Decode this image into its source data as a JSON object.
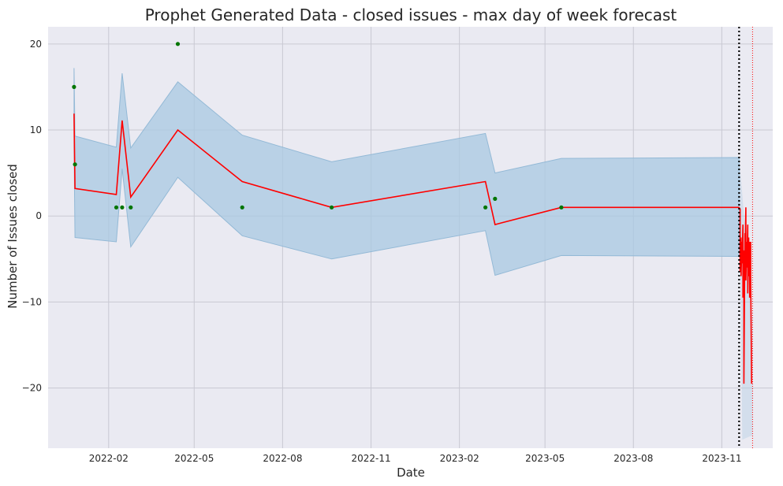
{
  "chart_data": {
    "type": "line",
    "title": "Prophet Generated Data - closed issues - max day of week forecast",
    "xlabel": "Date",
    "ylabel": "Number of Issues closed",
    "x_tick_labels": [
      "2022-02",
      "2022-05",
      "2022-08",
      "2022-11",
      "2023-02",
      "2023-05",
      "2023-08",
      "2023-11"
    ],
    "x_ticks": [
      "2022-02-01",
      "2022-05-01",
      "2022-08-01",
      "2022-11-01",
      "2023-02-01",
      "2023-05-01",
      "2023-08-01",
      "2023-11-01"
    ],
    "y_ticks": [
      -20,
      -10,
      0,
      10,
      20
    ],
    "xlim": [
      "2021-11-30",
      "2023-12-24"
    ],
    "ylim": [
      -27,
      22
    ],
    "grid": true,
    "colors": {
      "background": "#eaeaf2",
      "grid": "#c9c9d3",
      "forecast": "#ff0000",
      "band": "#a8c8e2",
      "band_edge": "#93b9d6",
      "observed": "#007500",
      "cutoff": "#000000",
      "end_marker": "#ff0000"
    },
    "observed": [
      {
        "x": "2021-12-27",
        "y": 15
      },
      {
        "x": "2021-12-28",
        "y": 6
      },
      {
        "x": "2022-02-09",
        "y": 1
      },
      {
        "x": "2022-02-15",
        "y": 1
      },
      {
        "x": "2022-02-24",
        "y": 1
      },
      {
        "x": "2022-04-14",
        "y": 20
      },
      {
        "x": "2022-06-20",
        "y": 1
      },
      {
        "x": "2022-09-21",
        "y": 1
      },
      {
        "x": "2023-02-28",
        "y": 1
      },
      {
        "x": "2023-03-10",
        "y": 2
      },
      {
        "x": "2023-05-18",
        "y": 1
      }
    ],
    "forecast": [
      {
        "x": "2021-12-27",
        "y": 11.9,
        "lower": 8.0,
        "upper": 17.2
      },
      {
        "x": "2021-12-28",
        "y": 3.2,
        "lower": -2.5,
        "upper": 9.3
      },
      {
        "x": "2022-02-09",
        "y": 2.5,
        "lower": -3.0,
        "upper": 8.0
      },
      {
        "x": "2022-02-15",
        "y": 11.1,
        "lower": 5.5,
        "upper": 16.6
      },
      {
        "x": "2022-02-24",
        "y": 2.2,
        "lower": -3.6,
        "upper": 7.9
      },
      {
        "x": "2022-04-14",
        "y": 10.0,
        "lower": 4.5,
        "upper": 15.6
      },
      {
        "x": "2022-06-20",
        "y": 4.0,
        "lower": -2.3,
        "upper": 9.4
      },
      {
        "x": "2022-09-21",
        "y": 1.0,
        "lower": -5.0,
        "upper": 6.3
      },
      {
        "x": "2023-02-28",
        "y": 4.0,
        "lower": -1.7,
        "upper": 9.6
      },
      {
        "x": "2023-03-10",
        "y": -1.0,
        "lower": -6.9,
        "upper": 5.0
      },
      {
        "x": "2023-05-18",
        "y": 1.0,
        "lower": -4.6,
        "upper": 6.7
      },
      {
        "x": "2023-11-19",
        "y": 1.0,
        "lower": -4.7,
        "upper": 6.8
      }
    ],
    "forecast_tail": [
      {
        "x": "2023-11-20",
        "y": 0.8
      },
      {
        "x": "2023-11-20",
        "y": -6.5
      },
      {
        "x": "2023-11-21",
        "y": -2.5
      },
      {
        "x": "2023-11-21",
        "y": -7.0
      },
      {
        "x": "2023-11-22",
        "y": -3.0
      },
      {
        "x": "2023-11-22",
        "y": -5.5
      },
      {
        "x": "2023-11-23",
        "y": -1.0
      },
      {
        "x": "2023-11-23",
        "y": -9.5
      },
      {
        "x": "2023-11-24",
        "y": -4.0
      },
      {
        "x": "2023-11-24",
        "y": -19.5
      },
      {
        "x": "2023-11-25",
        "y": -2.0
      },
      {
        "x": "2023-11-25",
        "y": -6.0
      },
      {
        "x": "2023-11-26",
        "y": 1.0
      },
      {
        "x": "2023-11-26",
        "y": -7.5
      },
      {
        "x": "2023-11-27",
        "y": -3.0
      },
      {
        "x": "2023-11-27",
        "y": -6.0
      },
      {
        "x": "2023-11-28",
        "y": -1.0
      },
      {
        "x": "2023-11-28",
        "y": -9.0
      },
      {
        "x": "2023-11-29",
        "y": -2.5
      },
      {
        "x": "2023-11-29",
        "y": -7.0
      },
      {
        "x": "2023-11-30",
        "y": -3.0
      },
      {
        "x": "2023-11-30",
        "y": -9.5
      },
      {
        "x": "2023-12-01",
        "y": -3.0
      },
      {
        "x": "2023-12-01",
        "y": -7.0
      },
      {
        "x": "2023-12-02",
        "y": -19.5
      }
    ],
    "cutoff_date": "2023-11-19",
    "end_date": "2023-12-03"
  }
}
